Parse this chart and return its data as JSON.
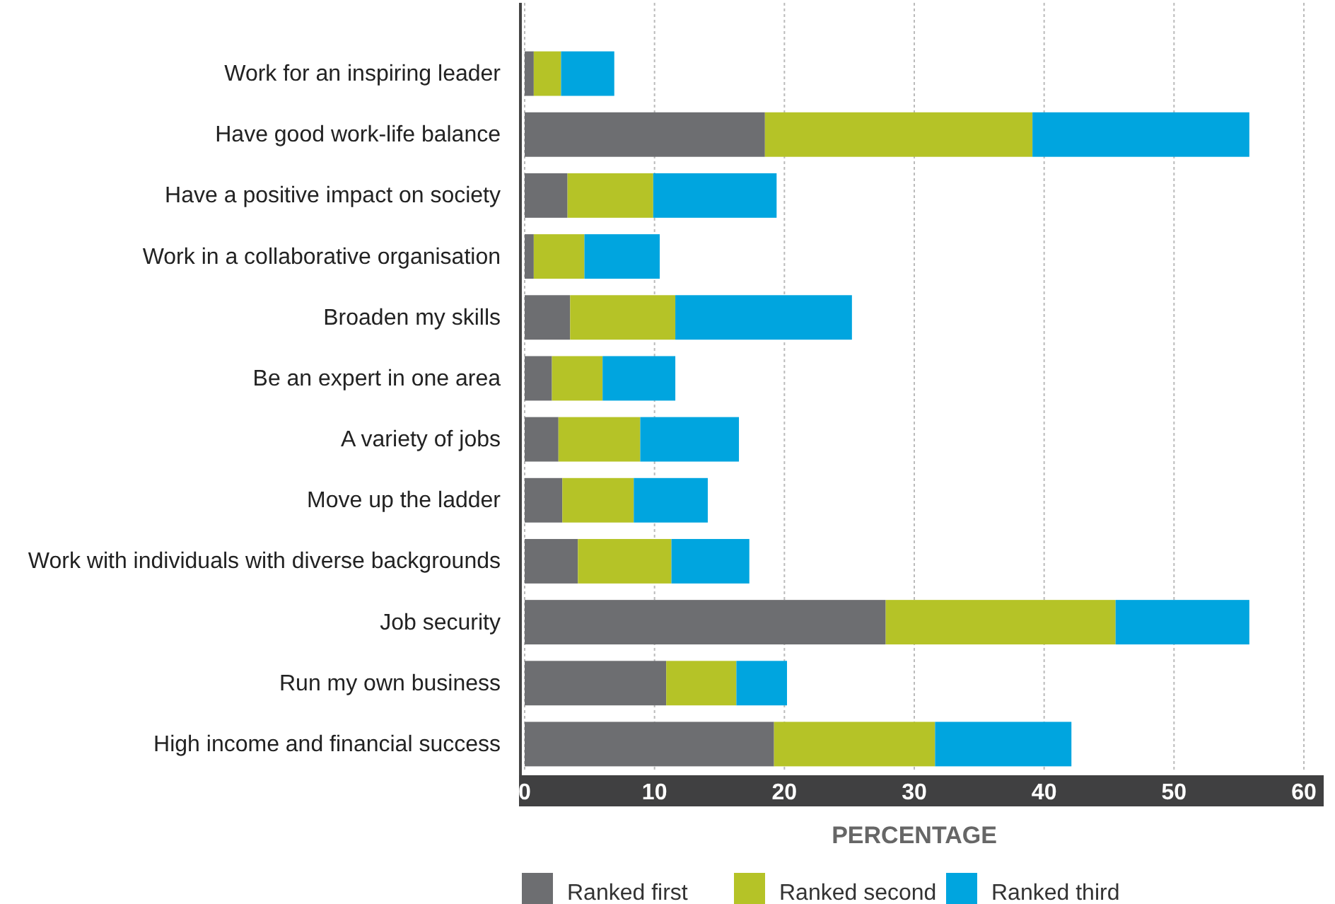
{
  "chart_data": {
    "type": "bar",
    "orientation": "horizontal",
    "stacked": true,
    "xlabel": "PERCENTAGE",
    "categories": [
      "Work for an inspiring leader",
      "Have good work-life balance",
      "Have a positive impact on society",
      "Work in a collaborative organisation",
      "Broaden my skills",
      "Be an expert in one area",
      "A variety of jobs",
      "Move up the ladder",
      "Work with individuals with diverse backgrounds",
      "Job security",
      "Run my own business",
      "High income and financial success"
    ],
    "series": [
      {
        "name": "Ranked first",
        "color": "#6d6e71",
        "values": [
          0.7,
          18.5,
          3.3,
          0.7,
          3.5,
          2.1,
          2.6,
          2.9,
          4.1,
          27.8,
          10.9,
          19.2
        ]
      },
      {
        "name": "Ranked second",
        "color": "#b5c327",
        "values": [
          2.1,
          20.6,
          6.6,
          3.9,
          8.1,
          3.9,
          6.3,
          5.5,
          7.2,
          17.7,
          5.4,
          12.4
        ]
      },
      {
        "name": "Ranked third",
        "color": "#00a5df",
        "values": [
          4.1,
          16.7,
          9.5,
          5.8,
          13.6,
          5.6,
          7.6,
          5.7,
          6.0,
          10.3,
          3.9,
          10.5
        ]
      }
    ],
    "xlim": [
      0,
      60
    ],
    "xticks": [
      0,
      10,
      20,
      30,
      40,
      50,
      60
    ],
    "grid": "x",
    "legend": "bottom"
  }
}
